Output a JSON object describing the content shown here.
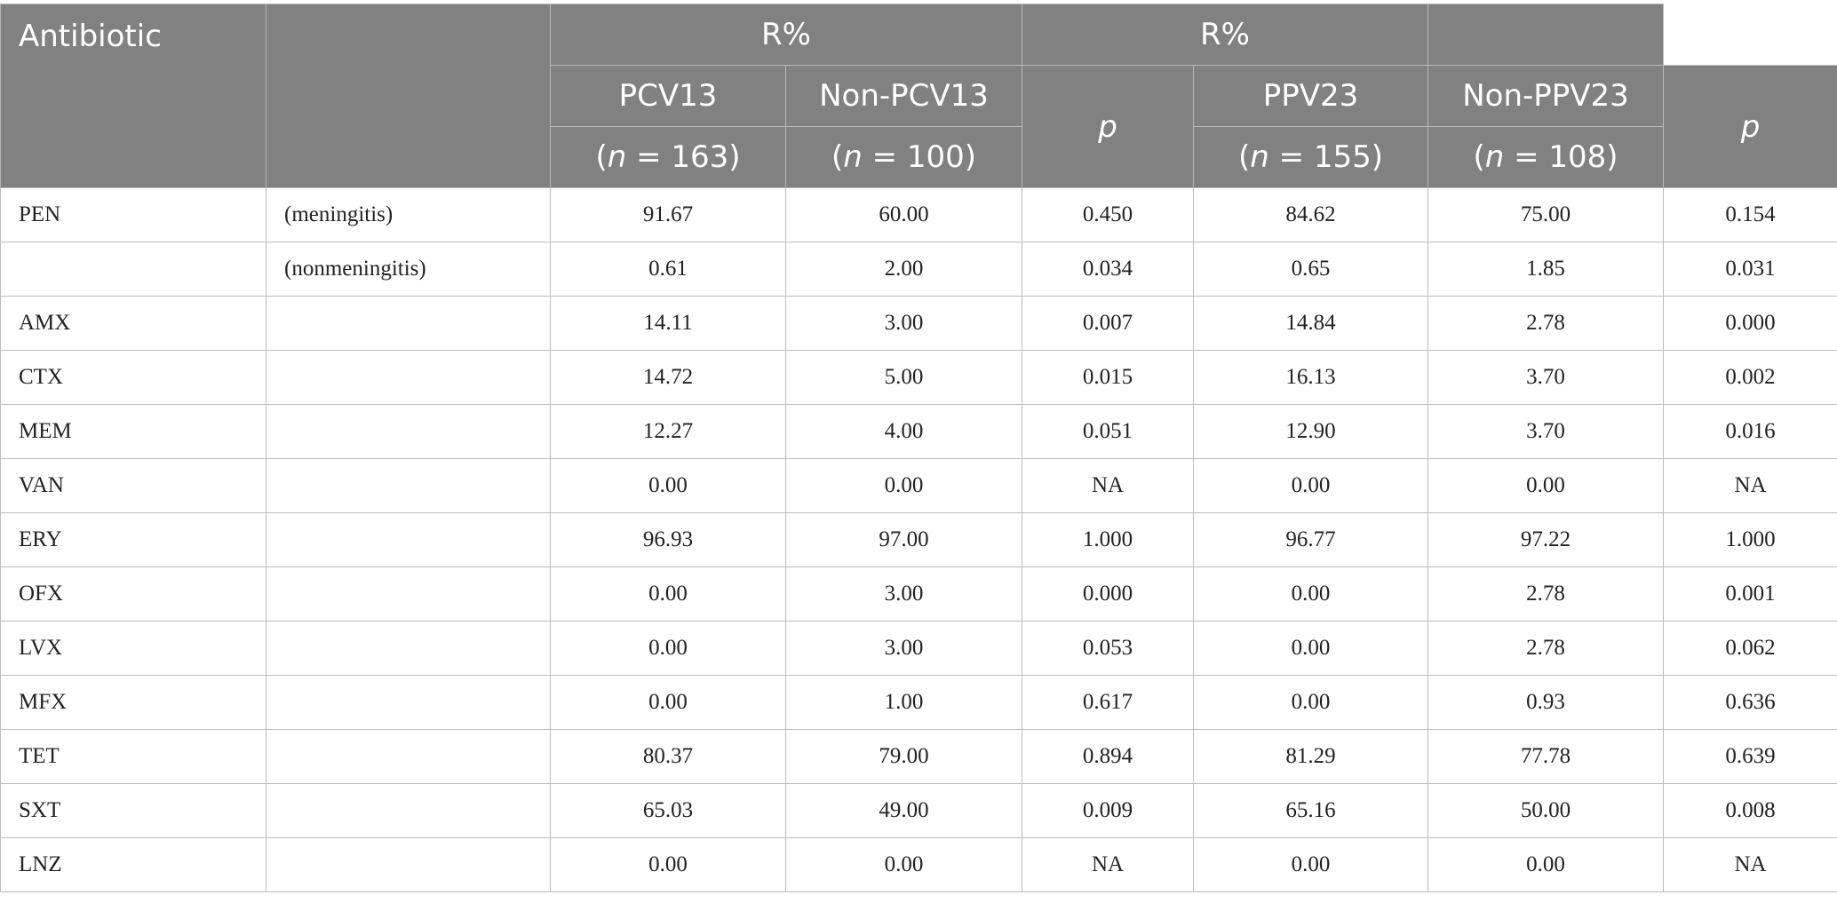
{
  "header": {
    "antibiotic": "Antibiotic",
    "group1": "R%",
    "group2": "R%",
    "col_pcv13": "PCV13",
    "col_non_pcv13": "Non-PCV13",
    "col_p1": "p",
    "col_ppv23": "PPV23",
    "col_non_ppv23": "Non-PPV23",
    "col_p2": "p",
    "n_pcv13": "163",
    "n_non_pcv13": "100",
    "n_ppv23": "155",
    "n_non_ppv23": "108",
    "n_letter": "n",
    "n_open": "(",
    "n_eq": " = ",
    "n_close": ")"
  },
  "rows": [
    {
      "antibiotic": "PEN",
      "sub": "(meningitis)",
      "pcv13": "91.67",
      "non_pcv13": "60.00",
      "p1": "0.450",
      "ppv23": "84.62",
      "non_ppv23": "75.00",
      "p2": "0.154"
    },
    {
      "antibiotic": "",
      "sub": "(nonmeningitis)",
      "pcv13": "0.61",
      "non_pcv13": "2.00",
      "p1": "0.034",
      "ppv23": "0.65",
      "non_ppv23": "1.85",
      "p2": "0.031"
    },
    {
      "antibiotic": "AMX",
      "sub": "",
      "pcv13": "14.11",
      "non_pcv13": "3.00",
      "p1": "0.007",
      "ppv23": "14.84",
      "non_ppv23": "2.78",
      "p2": "0.000"
    },
    {
      "antibiotic": "CTX",
      "sub": "",
      "pcv13": "14.72",
      "non_pcv13": "5.00",
      "p1": "0.015",
      "ppv23": "16.13",
      "non_ppv23": "3.70",
      "p2": "0.002"
    },
    {
      "antibiotic": "MEM",
      "sub": "",
      "pcv13": "12.27",
      "non_pcv13": "4.00",
      "p1": "0.051",
      "ppv23": "12.90",
      "non_ppv23": "3.70",
      "p2": "0.016"
    },
    {
      "antibiotic": "VAN",
      "sub": "",
      "pcv13": "0.00",
      "non_pcv13": "0.00",
      "p1": "NA",
      "ppv23": "0.00",
      "non_ppv23": "0.00",
      "p2": "NA"
    },
    {
      "antibiotic": "ERY",
      "sub": "",
      "pcv13": "96.93",
      "non_pcv13": "97.00",
      "p1": "1.000",
      "ppv23": "96.77",
      "non_ppv23": "97.22",
      "p2": "1.000"
    },
    {
      "antibiotic": "OFX",
      "sub": "",
      "pcv13": "0.00",
      "non_pcv13": "3.00",
      "p1": "0.000",
      "ppv23": "0.00",
      "non_ppv23": "2.78",
      "p2": "0.001"
    },
    {
      "antibiotic": "LVX",
      "sub": "",
      "pcv13": "0.00",
      "non_pcv13": "3.00",
      "p1": "0.053",
      "ppv23": "0.00",
      "non_ppv23": "2.78",
      "p2": "0.062"
    },
    {
      "antibiotic": "MFX",
      "sub": "",
      "pcv13": "0.00",
      "non_pcv13": "1.00",
      "p1": "0.617",
      "ppv23": "0.00",
      "non_ppv23": "0.93",
      "p2": "0.636"
    },
    {
      "antibiotic": "TET",
      "sub": "",
      "pcv13": "80.37",
      "non_pcv13": "79.00",
      "p1": "0.894",
      "ppv23": "81.29",
      "non_ppv23": "77.78",
      "p2": "0.639"
    },
    {
      "antibiotic": "SXT",
      "sub": "",
      "pcv13": "65.03",
      "non_pcv13": "49.00",
      "p1": "0.009",
      "ppv23": "65.16",
      "non_ppv23": "50.00",
      "p2": "0.008"
    },
    {
      "antibiotic": "LNZ",
      "sub": "",
      "pcv13": "0.00",
      "non_pcv13": "0.00",
      "p1": "NA",
      "ppv23": "0.00",
      "non_ppv23": "0.00",
      "p2": "NA"
    }
  ]
}
